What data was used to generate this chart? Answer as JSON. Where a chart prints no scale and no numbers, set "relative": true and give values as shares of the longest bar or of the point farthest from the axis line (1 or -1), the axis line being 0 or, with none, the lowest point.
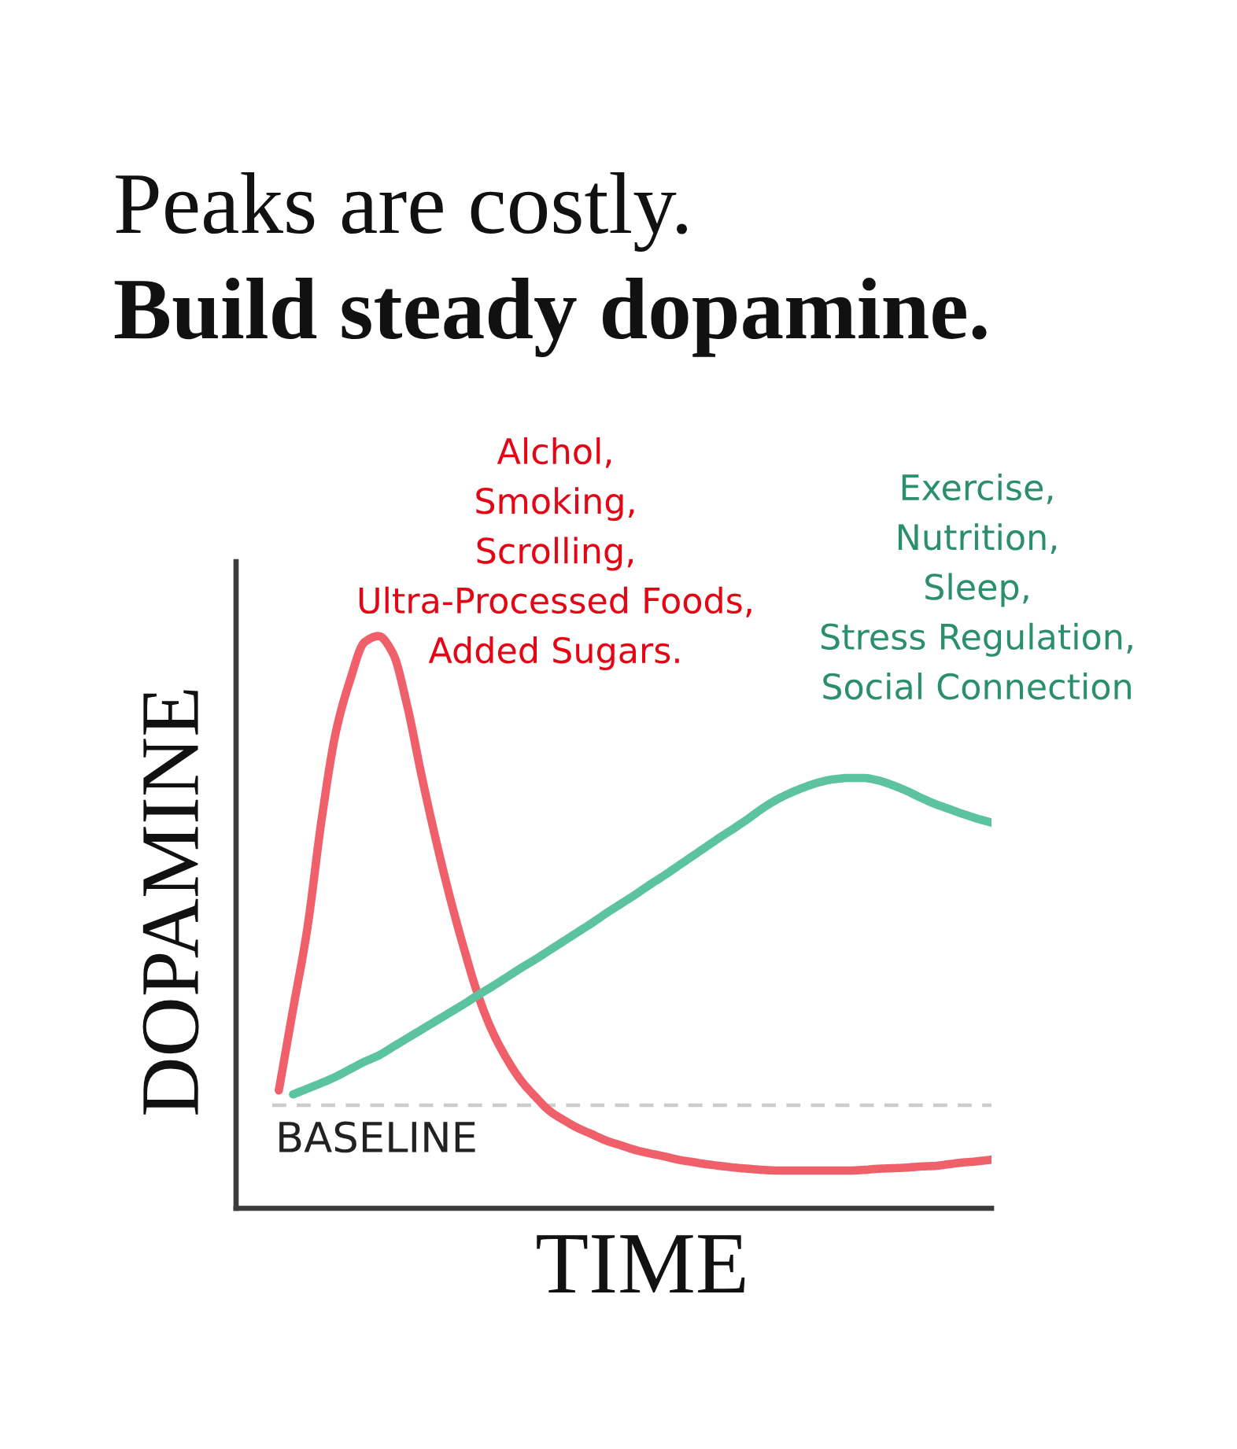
{
  "chart_data": {
    "type": "line",
    "title": "Peaks are costly.",
    "subtitle": "Build steady dopamine.",
    "xlabel": "TIME",
    "ylabel": "DOPAMINE",
    "relative": true,
    "line_style": "solid",
    "categories": [
      null,
      null,
      null,
      null,
      null,
      null,
      null,
      null,
      null,
      null,
      null,
      null,
      null,
      null,
      null,
      null,
      null,
      null,
      null,
      null,
      null,
      null,
      null,
      null,
      null,
      null,
      null,
      null,
      null,
      null,
      null,
      null,
      null,
      null,
      null,
      null,
      null,
      null,
      null,
      null,
      null,
      null,
      null,
      null,
      null,
      null,
      null,
      null,
      null,
      null,
      null,
      null,
      null,
      null
    ],
    "series": [
      {
        "name": "Alchol,\nSmoking,\nScrolling,\nUltra-Processed Foods,\nAdded Sugars.",
        "color": "#f0606a",
        "values": [
          null,
          null,
          null,
          0.206,
          0.348,
          0.489,
          0.679,
          0.832,
          0.923,
          0.989,
          1.0,
          0.97,
          0.879,
          0.758,
          0.646,
          0.544,
          0.453,
          0.371,
          0.308,
          0.261,
          0.223,
          0.195,
          0.17,
          0.154,
          0.14,
          0.129,
          0.118,
          0.11,
          0.102,
          0.096,
          0.091,
          0.085,
          0.081,
          0.077,
          0.074,
          0.071,
          0.069,
          0.067,
          0.066,
          0.066,
          0.066,
          0.066,
          0.066,
          0.066,
          0.067,
          0.069,
          0.07,
          0.071,
          0.073,
          0.074,
          0.077,
          0.08,
          0.082,
          0.085
        ]
      },
      {
        "name": "Exercise,\nNutrition,\nSleep,\nStress Regulation,\nSocial Connection",
        "color": "#5cc3a0",
        "values": [
          null,
          null,
          null,
          null,
          0.199,
          0.209,
          0.219,
          0.23,
          0.243,
          0.256,
          0.267,
          0.282,
          0.297,
          0.312,
          0.327,
          0.342,
          0.357,
          0.373,
          0.388,
          0.404,
          0.42,
          0.435,
          0.451,
          0.467,
          0.483,
          0.499,
          0.516,
          0.532,
          0.548,
          0.565,
          0.581,
          0.598,
          0.615,
          0.632,
          0.649,
          0.665,
          0.682,
          0.7,
          0.715,
          0.727,
          0.737,
          0.745,
          0.75,
          0.752,
          0.752,
          0.748,
          0.74,
          0.73,
          0.718,
          0.707,
          0.698,
          0.689,
          0.681,
          0.674
        ]
      }
    ],
    "ref_lines": [
      {
        "axis": "y",
        "value": 0.18,
        "label": "BASELINE",
        "color": "#cccccc",
        "line_style": "dashed"
      }
    ]
  }
}
